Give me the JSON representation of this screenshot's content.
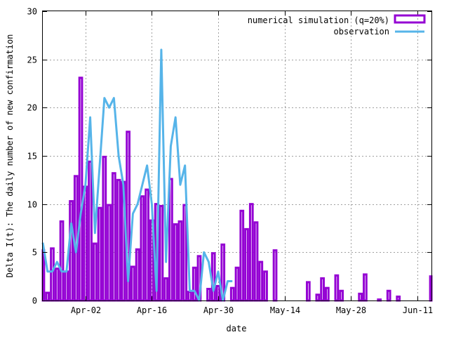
{
  "chart_data": {
    "type": "bar",
    "xlabel": "date",
    "ylabel": "Delta I(t): The daily number of new confirmation",
    "ylim": [
      0,
      30
    ],
    "y_ticks": [
      0,
      5,
      10,
      15,
      20,
      25,
      30
    ],
    "x_start_date": "2020-03-24",
    "x_end_date": "2020-06-14",
    "x_ticks": [
      {
        "label": "Apr-02",
        "date": "2020-04-02"
      },
      {
        "label": "Apr-16",
        "date": "2020-04-16"
      },
      {
        "label": "Apr-30",
        "date": "2020-04-30"
      },
      {
        "label": "May-14",
        "date": "2020-05-14"
      },
      {
        "label": "May-28",
        "date": "2020-05-28"
      },
      {
        "label": "Jun-11",
        "date": "2020-06-11"
      }
    ],
    "grid": true,
    "legend_position": "top-right",
    "series": [
      {
        "name": "numerical simulation (q=20%)",
        "kind": "bar",
        "color": "#9400d3",
        "points": [
          [
            "2020-03-24",
            5.2
          ],
          [
            "2020-03-25",
            0.8
          ],
          [
            "2020-03-26",
            5.4
          ],
          [
            "2020-03-27",
            3.3
          ],
          [
            "2020-03-28",
            8.2
          ],
          [
            "2020-03-29",
            3.0
          ],
          [
            "2020-03-30",
            10.3
          ],
          [
            "2020-03-31",
            12.9
          ],
          [
            "2020-04-01",
            23.1
          ],
          [
            "2020-04-02",
            11.8
          ],
          [
            "2020-04-03",
            14.4
          ],
          [
            "2020-04-04",
            5.9
          ],
          [
            "2020-04-05",
            9.6
          ],
          [
            "2020-04-06",
            14.9
          ],
          [
            "2020-04-07",
            9.9
          ],
          [
            "2020-04-08",
            13.2
          ],
          [
            "2020-04-09",
            12.5
          ],
          [
            "2020-04-10",
            12.3
          ],
          [
            "2020-04-11",
            17.5
          ],
          [
            "2020-04-12",
            3.5
          ],
          [
            "2020-04-13",
            5.3
          ],
          [
            "2020-04-14",
            10.8
          ],
          [
            "2020-04-15",
            11.5
          ],
          [
            "2020-04-16",
            8.3
          ],
          [
            "2020-04-17",
            10.0
          ],
          [
            "2020-04-18",
            9.8
          ],
          [
            "2020-04-19",
            2.3
          ],
          [
            "2020-04-20",
            12.6
          ],
          [
            "2020-04-21",
            7.9
          ],
          [
            "2020-04-22",
            8.2
          ],
          [
            "2020-04-23",
            9.9
          ],
          [
            "2020-04-24",
            0.9
          ],
          [
            "2020-04-25",
            3.4
          ],
          [
            "2020-04-26",
            4.6
          ],
          [
            "2020-04-28",
            1.2
          ],
          [
            "2020-04-29",
            4.9
          ],
          [
            "2020-04-30",
            1.5
          ],
          [
            "2020-05-01",
            5.8
          ],
          [
            "2020-05-03",
            1.3
          ],
          [
            "2020-05-04",
            3.4
          ],
          [
            "2020-05-05",
            9.3
          ],
          [
            "2020-05-06",
            7.4
          ],
          [
            "2020-05-07",
            10.0
          ],
          [
            "2020-05-08",
            8.1
          ],
          [
            "2020-05-09",
            4.0
          ],
          [
            "2020-05-10",
            3.0
          ],
          [
            "2020-05-12",
            5.2
          ],
          [
            "2020-05-19",
            1.9
          ],
          [
            "2020-05-21",
            0.6
          ],
          [
            "2020-05-22",
            2.3
          ],
          [
            "2020-05-23",
            1.3
          ],
          [
            "2020-05-25",
            2.6
          ],
          [
            "2020-05-26",
            1.0
          ],
          [
            "2020-05-30",
            0.7
          ],
          [
            "2020-05-31",
            2.7
          ],
          [
            "2020-06-03",
            0.1
          ],
          [
            "2020-06-05",
            1.0
          ],
          [
            "2020-06-07",
            0.4
          ],
          [
            "2020-06-14",
            2.5
          ]
        ]
      },
      {
        "name": "observation",
        "kind": "line",
        "color": "#56b4e9",
        "points": [
          [
            "2020-03-24",
            6.0
          ],
          [
            "2020-03-25",
            3.0
          ],
          [
            "2020-03-26",
            3.0
          ],
          [
            "2020-03-27",
            4.0
          ],
          [
            "2020-03-28",
            3.0
          ],
          [
            "2020-03-29",
            3.0
          ],
          [
            "2020-03-30",
            8.0
          ],
          [
            "2020-03-31",
            5.0
          ],
          [
            "2020-04-01",
            9.0
          ],
          [
            "2020-04-02",
            12.0
          ],
          [
            "2020-04-03",
            19.0
          ],
          [
            "2020-04-04",
            7.0
          ],
          [
            "2020-04-05",
            14.0
          ],
          [
            "2020-04-06",
            21.0
          ],
          [
            "2020-04-07",
            20.0
          ],
          [
            "2020-04-08",
            21.0
          ],
          [
            "2020-04-09",
            15.0
          ],
          [
            "2020-04-10",
            12.0
          ],
          [
            "2020-04-11",
            2.0
          ],
          [
            "2020-04-12",
            9.0
          ],
          [
            "2020-04-13",
            10.0
          ],
          [
            "2020-04-14",
            12.0
          ],
          [
            "2020-04-15",
            14.0
          ],
          [
            "2020-04-16",
            10.0
          ],
          [
            "2020-04-17",
            1.0
          ],
          [
            "2020-04-18",
            26.0
          ],
          [
            "2020-04-19",
            4.0
          ],
          [
            "2020-04-20",
            16.0
          ],
          [
            "2020-04-21",
            19.0
          ],
          [
            "2020-04-22",
            12.0
          ],
          [
            "2020-04-23",
            14.0
          ],
          [
            "2020-04-24",
            1.0
          ],
          [
            "2020-04-25",
            1.0
          ],
          [
            "2020-04-26",
            0.0
          ],
          [
            "2020-04-27",
            5.0
          ],
          [
            "2020-04-28",
            4.0
          ],
          [
            "2020-04-29",
            1.0
          ],
          [
            "2020-04-30",
            3.0
          ],
          [
            "2020-05-01",
            0.0
          ],
          [
            "2020-05-02",
            2.0
          ],
          [
            "2020-05-03",
            2.0
          ]
        ]
      }
    ]
  }
}
